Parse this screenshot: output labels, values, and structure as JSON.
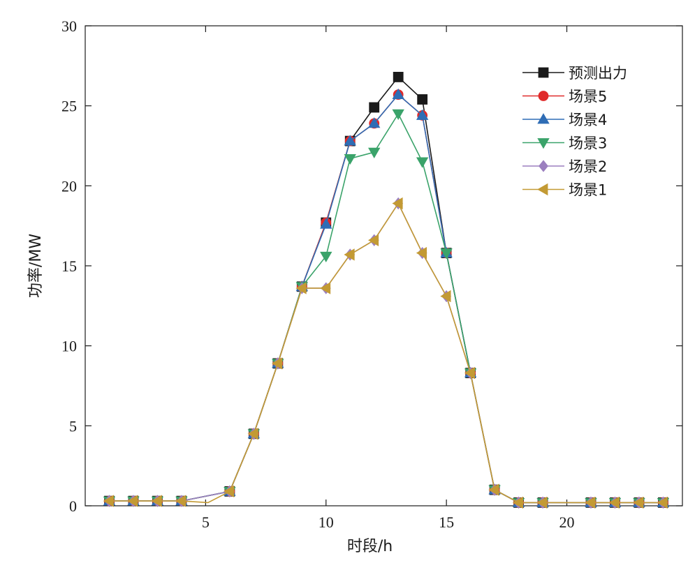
{
  "chart_data": {
    "type": "line",
    "xlabel": "时段/h",
    "ylabel": "功率/MW",
    "xlim": [
      0,
      24.8
    ],
    "ylim": [
      0,
      30
    ],
    "xticks": [
      5,
      10,
      15,
      20
    ],
    "yticks": [
      0,
      5,
      10,
      15,
      20,
      25,
      30
    ],
    "grid": false,
    "legend_position": "top-right",
    "series": [
      {
        "name": "预测出力",
        "color": "#1a1a1a",
        "marker": "square",
        "points": [
          [
            1,
            0.3
          ],
          [
            2,
            0.3
          ],
          [
            3,
            0.3
          ],
          [
            4,
            0.3
          ],
          [
            6,
            0.9
          ],
          [
            7,
            4.5
          ],
          [
            8,
            8.9
          ],
          [
            9,
            13.7
          ],
          [
            10,
            17.7
          ],
          [
            11,
            22.8
          ],
          [
            12,
            24.9
          ],
          [
            13,
            26.8
          ],
          [
            14,
            25.4
          ],
          [
            15,
            15.8
          ],
          [
            16,
            8.3
          ],
          [
            17,
            1.0
          ],
          [
            18,
            0.2
          ],
          [
            19,
            0.2
          ],
          [
            21,
            0.2
          ],
          [
            22,
            0.2
          ],
          [
            23,
            0.2
          ],
          [
            24,
            0.2
          ]
        ]
      },
      {
        "name": "场景5",
        "color": "#e02a2a",
        "marker": "circle",
        "points": [
          [
            1,
            0.3
          ],
          [
            2,
            0.3
          ],
          [
            3,
            0.3
          ],
          [
            4,
            0.3
          ],
          [
            6,
            0.9
          ],
          [
            7,
            4.5
          ],
          [
            8,
            8.9
          ],
          [
            9,
            13.7
          ],
          [
            10,
            17.7
          ],
          [
            11,
            22.8
          ],
          [
            12,
            23.9
          ],
          [
            13,
            25.7
          ],
          [
            14,
            24.4
          ],
          [
            15,
            15.8
          ],
          [
            16,
            8.3
          ],
          [
            17,
            1.0
          ],
          [
            18,
            0.2
          ],
          [
            19,
            0.2
          ],
          [
            21,
            0.2
          ],
          [
            22,
            0.2
          ],
          [
            23,
            0.2
          ],
          [
            24,
            0.2
          ]
        ]
      },
      {
        "name": "场景4",
        "color": "#2f6db5",
        "marker": "triangle-up",
        "points": [
          [
            1,
            0.3
          ],
          [
            2,
            0.3
          ],
          [
            3,
            0.3
          ],
          [
            4,
            0.3
          ],
          [
            6,
            0.9
          ],
          [
            7,
            4.5
          ],
          [
            8,
            8.9
          ],
          [
            9,
            13.7
          ],
          [
            10,
            17.6
          ],
          [
            11,
            22.8
          ],
          [
            12,
            23.9
          ],
          [
            13,
            25.7
          ],
          [
            14,
            24.4
          ],
          [
            15,
            15.8
          ],
          [
            16,
            8.3
          ],
          [
            17,
            1.0
          ],
          [
            18,
            0.2
          ],
          [
            19,
            0.2
          ],
          [
            21,
            0.2
          ],
          [
            22,
            0.2
          ],
          [
            23,
            0.2
          ],
          [
            24,
            0.2
          ]
        ]
      },
      {
        "name": "场景3",
        "color": "#3aa36a",
        "marker": "triangle-down",
        "points": [
          [
            1,
            0.3
          ],
          [
            2,
            0.3
          ],
          [
            3,
            0.3
          ],
          [
            4,
            0.3
          ],
          [
            6,
            0.9
          ],
          [
            7,
            4.5
          ],
          [
            8,
            8.9
          ],
          [
            9,
            13.7
          ],
          [
            10,
            15.6
          ],
          [
            11,
            21.7
          ],
          [
            12,
            22.1
          ],
          [
            13,
            24.5
          ],
          [
            14,
            21.5
          ],
          [
            15,
            15.8
          ],
          [
            16,
            8.3
          ],
          [
            17,
            1.0
          ],
          [
            18,
            0.2
          ],
          [
            19,
            0.2
          ],
          [
            21,
            0.2
          ],
          [
            22,
            0.2
          ],
          [
            23,
            0.2
          ],
          [
            24,
            0.2
          ]
        ]
      },
      {
        "name": "场景2",
        "color": "#9b7fbf",
        "marker": "diamond",
        "points": [
          [
            1,
            0.3
          ],
          [
            2,
            0.3
          ],
          [
            3,
            0.3
          ],
          [
            4,
            0.3
          ],
          [
            6,
            0.9
          ],
          [
            7,
            4.5
          ],
          [
            8,
            8.9
          ],
          [
            9,
            13.6
          ],
          [
            10,
            13.6
          ],
          [
            11,
            15.7
          ],
          [
            12,
            16.6
          ],
          [
            13,
            18.9
          ],
          [
            14,
            15.8
          ],
          [
            15,
            13.1
          ],
          [
            16,
            8.3
          ],
          [
            17,
            1.0
          ],
          [
            18,
            0.2
          ],
          [
            19,
            0.2
          ],
          [
            21,
            0.2
          ],
          [
            22,
            0.2
          ],
          [
            23,
            0.2
          ],
          [
            24,
            0.2
          ]
        ]
      },
      {
        "name": "场景1",
        "color": "#c39a34",
        "marker": "triangle-left",
        "points": [
          [
            1,
            0.3
          ],
          [
            2,
            0.3
          ],
          [
            3,
            0.3
          ],
          [
            4,
            0.3
          ],
          [
            5.1,
            0.2
          ],
          [
            6,
            0.9
          ],
          [
            7,
            4.5
          ],
          [
            8,
            8.9
          ],
          [
            9,
            13.6
          ],
          [
            10,
            13.6
          ],
          [
            11,
            15.7
          ],
          [
            12,
            16.6
          ],
          [
            13,
            18.9
          ],
          [
            14,
            15.8
          ],
          [
            15,
            13.1
          ],
          [
            16,
            8.3
          ],
          [
            17,
            1.0
          ],
          [
            18,
            0.2
          ],
          [
            19,
            0.2
          ],
          [
            21,
            0.2
          ],
          [
            22,
            0.2
          ],
          [
            23,
            0.2
          ],
          [
            24,
            0.2
          ]
        ]
      }
    ]
  }
}
